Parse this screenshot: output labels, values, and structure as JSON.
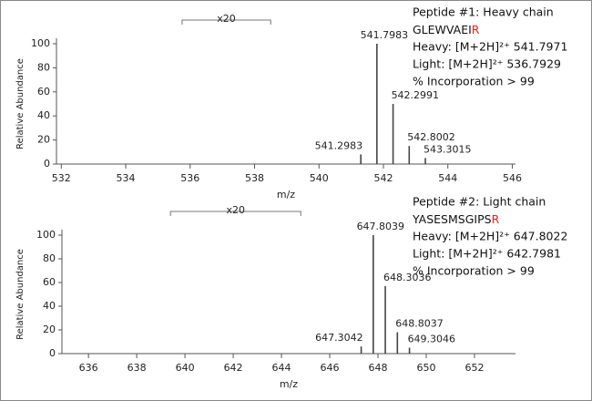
{
  "chart_data": [
    {
      "type": "bar",
      "xlabel": "m/z",
      "ylabel": "Relative Abundance",
      "x": [
        541.2983,
        541.7983,
        542.2991,
        542.8002,
        543.3015
      ],
      "values": [
        8,
        100,
        50,
        15,
        5
      ],
      "color": "#444444",
      "xlim": [
        531.85,
        546.1
      ],
      "xticks": [
        532,
        534,
        536,
        538,
        540,
        542,
        544,
        546
      ],
      "ylim": [
        0,
        100
      ],
      "yticks": [
        0,
        20,
        40,
        60,
        80,
        100
      ],
      "zoom_label": "x20",
      "zoom_range": [
        535.75,
        538.5
      ],
      "annotation": {
        "title": "Peptide  #1: Heavy chain",
        "sequence": "GLEWVAEI",
        "label": "R",
        "label_color": "#e0241b",
        "lines": [
          "Heavy: [M+2H]²⁺ 541.7971",
          "Light: [M+2H]²⁺ 536.7929",
          "% Incorporation > 99"
        ]
      }
    },
    {
      "type": "bar",
      "xlabel": "m/z",
      "ylabel": "Relative Abundance",
      "x": [
        647.3042,
        647.8039,
        648.3036,
        648.8037,
        649.3046
      ],
      "values": [
        6,
        100,
        57,
        18,
        5
      ],
      "color": "#444444",
      "xlim": [
        634.9,
        653.7
      ],
      "xticks": [
        636,
        638,
        640,
        642,
        644,
        646,
        648,
        650,
        652
      ],
      "ylim": [
        0,
        100
      ],
      "yticks": [
        0,
        20,
        40,
        60,
        80,
        100
      ],
      "zoom_label": "x20",
      "zoom_range": [
        639.4,
        644.8
      ],
      "annotation": {
        "title": "Peptide #2: Light chain",
        "sequence": "YASESMSGIPS",
        "label": "R",
        "label_color": "#e0241b",
        "lines": [
          "Heavy: [M+2H]²⁺ 647.8022",
          "Light: [M+2H]²⁺ 642.7981",
          "% Incorporation > 99"
        ]
      }
    }
  ]
}
